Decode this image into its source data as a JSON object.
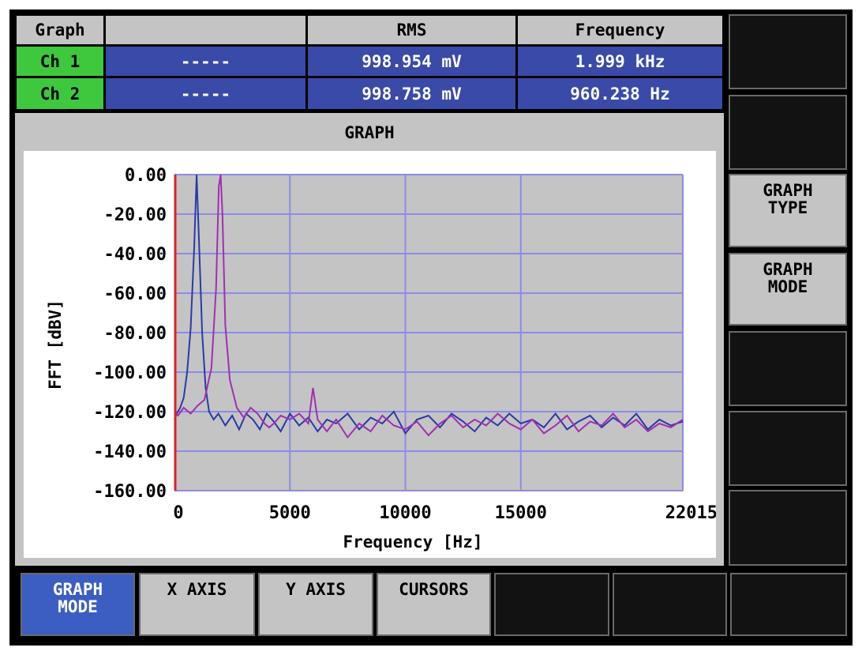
{
  "table": {
    "headers": [
      "Graph",
      "",
      "RMS",
      "Frequency"
    ],
    "rows": [
      {
        "channel": "Ch 1",
        "col2": "-----",
        "rms": "998.954 mV",
        "freq": "1.999 kHz"
      },
      {
        "channel": "Ch 2",
        "col2": "-----",
        "rms": "998.758 mV",
        "freq": "960.238 Hz"
      }
    ]
  },
  "panel": {
    "title": "GRAPH"
  },
  "chart_data": {
    "type": "line",
    "title": "",
    "xlabel": "Frequency [Hz]",
    "ylabel": "FFT [dBV]",
    "xlim": [
      0,
      22015
    ],
    "ylim": [
      -160,
      0
    ],
    "x_ticks": [
      0,
      5000,
      10000,
      15000,
      22015
    ],
    "x_tick_labels": [
      "0",
      "5000",
      "10000",
      "15000",
      "22015"
    ],
    "y_ticks": [
      0,
      -20,
      -40,
      -60,
      -80,
      -100,
      -120,
      -140,
      -160
    ],
    "y_tick_labels": [
      "0.00",
      "-20.00",
      "-40.00",
      "-60.00",
      "-80.00",
      "-100.00",
      "-120.00",
      "-140.00",
      "-160.00"
    ],
    "grid": true,
    "series": [
      {
        "color": "#2a3aa8",
        "x": [
          0,
          100,
          250,
          400,
          550,
          700,
          850,
          960,
          1070,
          1200,
          1350,
          1500,
          1700,
          1900,
          2200,
          2500,
          2800,
          3100,
          3400,
          3700,
          4000,
          4300,
          4600,
          5000,
          5400,
          5800,
          6200,
          6600,
          7000,
          7500,
          8000,
          8500,
          9000,
          9500,
          10000,
          10500,
          11000,
          11500,
          12000,
          12500,
          13000,
          13500,
          14000,
          14500,
          15000,
          15500,
          16000,
          16500,
          17000,
          17500,
          18000,
          18500,
          19000,
          19500,
          20000,
          20500,
          21000,
          21500,
          22015
        ],
        "y": [
          -124,
          -121,
          -118,
          -113,
          -100,
          -78,
          -38,
          0,
          -36,
          -80,
          -108,
          -120,
          -124,
          -121,
          -127,
          -122,
          -129,
          -121,
          -124,
          -129,
          -121,
          -125,
          -130,
          -121,
          -127,
          -123,
          -130,
          -124,
          -126,
          -121,
          -129,
          -123,
          -126,
          -120,
          -131,
          -124,
          -122,
          -128,
          -121,
          -125,
          -130,
          -123,
          -127,
          -121,
          -126,
          -124,
          -128,
          -121,
          -129,
          -125,
          -122,
          -128,
          -123,
          -127,
          -121,
          -129,
          -124,
          -127,
          -125
        ]
      },
      {
        "color": "#a030b0",
        "x": [
          0,
          150,
          400,
          700,
          1000,
          1300,
          1600,
          1800,
          1920,
          2000,
          2080,
          2200,
          2400,
          2700,
          3000,
          3300,
          3600,
          3900,
          4100,
          4300,
          4600,
          5000,
          5400,
          5800,
          6000,
          6200,
          6600,
          7000,
          7500,
          8000,
          8500,
          9000,
          9500,
          10000,
          10500,
          11000,
          11500,
          12000,
          12500,
          13000,
          13500,
          14000,
          14500,
          15000,
          15500,
          16000,
          16500,
          17000,
          17500,
          18000,
          18500,
          19000,
          19500,
          20000,
          20500,
          21000,
          21500,
          22015
        ],
        "y": [
          -120,
          -122,
          -118,
          -121,
          -117,
          -114,
          -98,
          -58,
          -6,
          0,
          -20,
          -76,
          -104,
          -118,
          -123,
          -118,
          -121,
          -126,
          -128,
          -126,
          -122,
          -124,
          -121,
          -126,
          -108,
          -124,
          -130,
          -124,
          -133,
          -126,
          -130,
          -122,
          -127,
          -129,
          -125,
          -132,
          -126,
          -122,
          -128,
          -124,
          -127,
          -121,
          -126,
          -129,
          -124,
          -131,
          -127,
          -122,
          -130,
          -125,
          -127,
          -121,
          -128,
          -124,
          -130,
          -126,
          -128,
          -124
        ]
      }
    ],
    "annotations": [
      {
        "type": "vertical-line",
        "x": 0,
        "color": "#e02020"
      }
    ]
  },
  "side_keys": [
    {
      "label": ""
    },
    {
      "label": ""
    },
    {
      "label": "GRAPH\nTYPE"
    },
    {
      "label": "GRAPH\nMODE"
    },
    {
      "label": ""
    },
    {
      "label": ""
    },
    {
      "label": ""
    }
  ],
  "bottom_keys": [
    {
      "label": "GRAPH\nMODE"
    },
    {
      "label": "X AXIS"
    },
    {
      "label": "Y AXIS"
    },
    {
      "label": "CURSORS"
    },
    {
      "label": ""
    },
    {
      "label": ""
    },
    {
      "label": ""
    }
  ]
}
